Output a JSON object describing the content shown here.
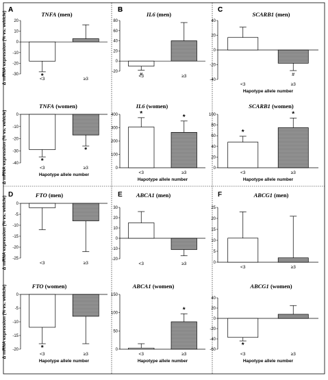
{
  "panel_labels": [
    "A",
    "B",
    "C",
    "D",
    "E",
    "F"
  ],
  "y_axis_label": "Δ mRNA expression (% vs. vehicle)",
  "x_axis_label": "Hapotype allele number",
  "chart_data": [
    {
      "type": "bar",
      "panel": "A",
      "gene": "TNFA",
      "group": " (men)",
      "categories": [
        "<3",
        "≥3"
      ],
      "values": [
        -18,
        3
      ],
      "errors": [
        10,
        13
      ],
      "ylim": [
        -30,
        20
      ],
      "yticks": [
        -30,
        -20,
        -10,
        0,
        10,
        20
      ],
      "annotations": [
        "*",
        ""
      ],
      "xlabel": "",
      "ylabel": "Δ mRNA expression (% vs. vehicle)"
    },
    {
      "type": "bar",
      "panel": "B",
      "gene": "IL6",
      "group": " (men)",
      "categories": [
        "<3",
        "≥3"
      ],
      "values": [
        -10,
        40
      ],
      "errors": [
        8,
        36
      ],
      "ylim": [
        -20,
        80
      ],
      "yticks": [
        -20,
        0,
        20,
        40,
        60,
        80
      ],
      "annotations": [
        "#",
        ""
      ],
      "xlabel": "",
      "ylabel": ""
    },
    {
      "type": "bar",
      "panel": "C",
      "gene": "SCARB1",
      "group": " (men)",
      "categories": [
        "<3",
        "≥3"
      ],
      "values": [
        17,
        -18
      ],
      "errors": [
        14,
        10
      ],
      "ylim": [
        -40,
        40
      ],
      "yticks": [
        -40,
        -20,
        0,
        20,
        40
      ],
      "annotations": [
        "",
        "#"
      ],
      "xlabel": "Hapotype allele number",
      "ylabel": ""
    },
    {
      "type": "bar",
      "panel": "A",
      "gene": "TNFA",
      "group": " (women)",
      "categories": [
        "<3",
        "≥3"
      ],
      "values": [
        -29,
        -17
      ],
      "errors": [
        6,
        9
      ],
      "ylim": [
        -40,
        0
      ],
      "yticks": [
        -40,
        -30,
        -20,
        -10,
        0
      ],
      "annotations": [
        "*",
        "*"
      ],
      "xlabel": "Hapotype allele number",
      "ylabel": "Δ mRNA expression (% vs. vehicle)"
    },
    {
      "type": "bar",
      "panel": "B",
      "gene": "IL6",
      "group": " (women)",
      "categories": [
        "<3",
        "≥3"
      ],
      "values": [
        305,
        265
      ],
      "errors": [
        70,
        85
      ],
      "ylim": [
        0,
        400
      ],
      "yticks": [
        0,
        100,
        200,
        300,
        400
      ],
      "annotations": [
        "*",
        "*"
      ],
      "xlabel": "Hapotype allele number",
      "ylabel": ""
    },
    {
      "type": "bar",
      "panel": "C",
      "gene": "SCARB1",
      "group": " (women)",
      "categories": [
        "<3",
        "≥3"
      ],
      "values": [
        48,
        75
      ],
      "errors": [
        11,
        18
      ],
      "ylim": [
        0,
        100
      ],
      "yticks": [
        0,
        20,
        40,
        60,
        80,
        100
      ],
      "annotations": [
        "*",
        "*"
      ],
      "xlabel": "Hapotype allele number",
      "ylabel": ""
    },
    {
      "type": "bar",
      "panel": "D",
      "gene": "FTO",
      "group": " (men)",
      "categories": [
        "<3",
        "≥3"
      ],
      "values": [
        -2,
        -8
      ],
      "errors": [
        10,
        14
      ],
      "ylim": [
        -25,
        0
      ],
      "yticks": [
        -25,
        -20,
        -15,
        -10,
        -5,
        0
      ],
      "annotations": [
        "",
        ""
      ],
      "xlabel": "",
      "ylabel": "Δ mRNA expression (% vs. vehicle)"
    },
    {
      "type": "bar",
      "panel": "E",
      "gene": "ABCA1",
      "group": " (men)",
      "categories": [
        "<3",
        "≥3"
      ],
      "values": [
        15,
        -11
      ],
      "errors": [
        11,
        6
      ],
      "ylim": [
        -20,
        30
      ],
      "yticks": [
        -20,
        -10,
        0,
        10,
        20,
        30
      ],
      "annotations": [
        "",
        ""
      ],
      "xlabel": "",
      "ylabel": ""
    },
    {
      "type": "bar",
      "panel": "F",
      "gene": "ABCG1",
      "group": " (men)",
      "categories": [
        "<3",
        "≥3"
      ],
      "values": [
        11,
        2
      ],
      "errors": [
        12,
        19
      ],
      "ylim": [
        0,
        25
      ],
      "yticks": [
        0,
        5,
        10,
        15,
        20,
        25
      ],
      "annotations": [
        "",
        ""
      ],
      "xlabel": "",
      "ylabel": ""
    },
    {
      "type": "bar",
      "panel": "",
      "gene": "FTO",
      "group": " (women)",
      "categories": [
        "<3",
        "≥3"
      ],
      "values": [
        -12,
        -8
      ],
      "errors": [
        6,
        10
      ],
      "ylim": [
        -20,
        0
      ],
      "yticks": [
        -20,
        -15,
        -10,
        -5,
        0
      ],
      "annotations": [
        "*",
        ""
      ],
      "xlabel": "Hapotype allele number",
      "ylabel": "Δ mRNA expression (% vs. vehicle)"
    },
    {
      "type": "bar",
      "panel": "",
      "gene": "ABCA1",
      "group": " (women)",
      "categories": [
        "<3",
        "≥3"
      ],
      "values": [
        3,
        75
      ],
      "errors": [
        12,
        22
      ],
      "ylim": [
        0,
        150
      ],
      "yticks": [
        0,
        50,
        100,
        150
      ],
      "annotations": [
        "",
        "*"
      ],
      "xlabel": "Hapotype allele number",
      "ylabel": ""
    },
    {
      "type": "bar",
      "panel": "",
      "gene": "ABCG1",
      "group": " (women)",
      "categories": [
        "<3",
        "≥3"
      ],
      "values": [
        -37,
        8
      ],
      "errors": [
        7,
        17
      ],
      "ylim": [
        -60,
        40
      ],
      "yticks": [
        -60,
        -40,
        -20,
        0,
        20,
        40
      ],
      "annotations": [
        "*",
        ""
      ],
      "xlabel": "Hapotype allele number",
      "ylabel": ""
    }
  ]
}
